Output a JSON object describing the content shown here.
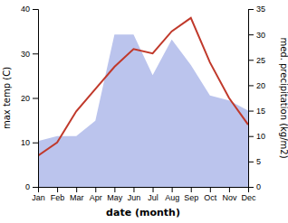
{
  "chart_data": {
    "type": "line",
    "xlabel": "date (month)",
    "ylabel": "max temp (C)",
    "y2label": "med. precipitation (kg/m2)",
    "categories": [
      "Jan",
      "Feb",
      "Mar",
      "Apr",
      "May",
      "Jun",
      "Jul",
      "Aug",
      "Sep",
      "Oct",
      "Nov",
      "Dec"
    ],
    "series": [
      {
        "type": "area",
        "axis": "y2",
        "color": "#bbc4ed",
        "values": [
          9,
          10,
          10,
          13,
          30,
          30,
          22,
          29,
          24,
          18,
          17,
          15
        ]
      },
      {
        "type": "line",
        "color": "#c0392b",
        "values": [
          7,
          10,
          17,
          22,
          27,
          31,
          30,
          35,
          38,
          28,
          20,
          14
        ]
      }
    ],
    "ylim": [
      0,
      40
    ],
    "yticks": [
      0,
      10,
      20,
      30,
      40
    ],
    "y2lim": [
      0,
      35
    ],
    "y2ticks": [
      0,
      5,
      10,
      15,
      20,
      25,
      30,
      35
    ],
    "grid": false
  }
}
